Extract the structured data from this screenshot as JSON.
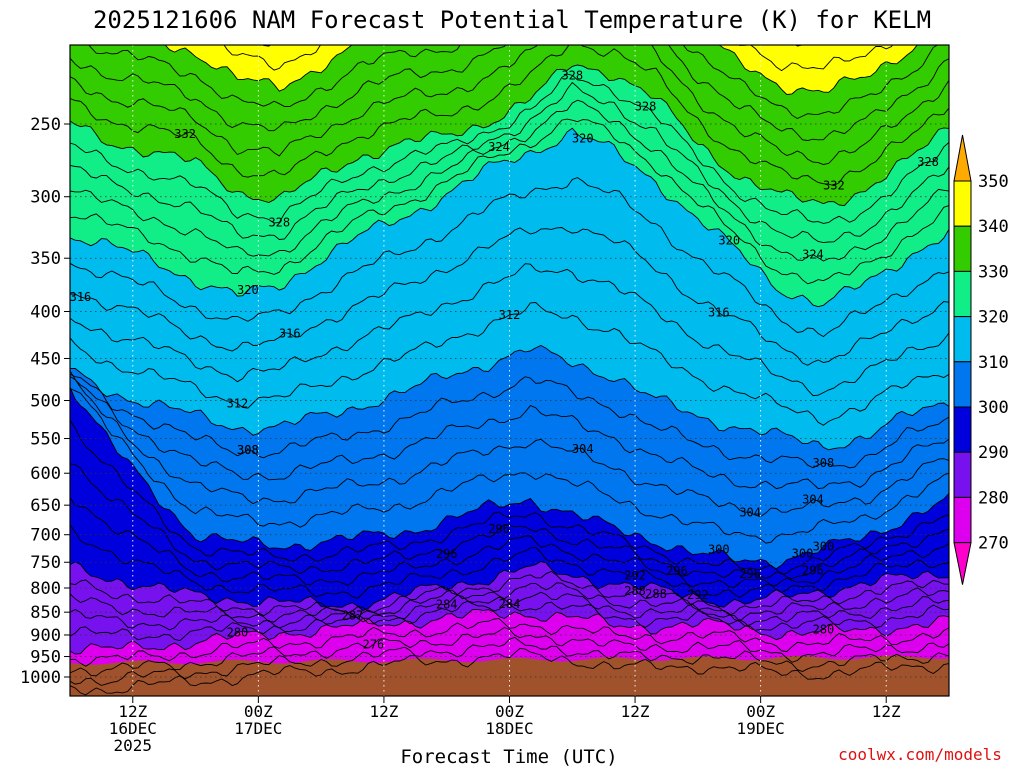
{
  "chart_data": {
    "type": "contour",
    "title": "2025121606 NAM Forecast Potential Temperature (K) for KELM",
    "xlabel": "Forecast Time (UTC)",
    "credit": "coolwx.com/models",
    "yticks": [
      "250",
      "300",
      "350",
      "400",
      "450",
      "500",
      "550",
      "600",
      "650",
      "700",
      "750",
      "800",
      "850",
      "900",
      "950",
      "1000"
    ],
    "ytick_values": [
      250,
      300,
      350,
      400,
      450,
      500,
      550,
      600,
      650,
      700,
      750,
      800,
      850,
      900,
      950,
      1000
    ],
    "xticks": [
      {
        "l1": "12Z",
        "l2": "16DEC",
        "l3": "2025",
        "hour": 6
      },
      {
        "l1": "00Z",
        "l2": "17DEC",
        "l3": "",
        "hour": 18
      },
      {
        "l1": "12Z",
        "l2": "",
        "l3": "",
        "hour": 30
      },
      {
        "l1": "00Z",
        "l2": "18DEC",
        "l3": "",
        "hour": 42
      },
      {
        "l1": "12Z",
        "l2": "",
        "l3": "",
        "hour": 54
      },
      {
        "l1": "00Z",
        "l2": "19DEC",
        "l3": "",
        "hour": 66
      },
      {
        "l1": "12Z",
        "l2": "",
        "l3": "",
        "hour": 78
      }
    ],
    "x_range_hours": [
      0,
      84
    ],
    "colorbar": {
      "labels": [
        "350",
        "340",
        "330",
        "320",
        "310",
        "300",
        "290",
        "280",
        "270"
      ],
      "bands": [
        {
          "lo": 340,
          "hi": 350,
          "color": "#ffff00"
        },
        {
          "lo": 330,
          "hi": 340,
          "color": "#33cc00"
        },
        {
          "lo": 320,
          "hi": 330,
          "color": "#11ee88"
        },
        {
          "lo": 310,
          "hi": 320,
          "color": "#00bbee"
        },
        {
          "lo": 300,
          "hi": 310,
          "color": "#0077ee"
        },
        {
          "lo": 290,
          "hi": 300,
          "color": "#0000dd"
        },
        {
          "lo": 280,
          "hi": 290,
          "color": "#7711ee"
        },
        {
          "lo": 270,
          "hi": 280,
          "color": "#dd00ee"
        }
      ],
      "top_color": "#ffaa00",
      "bottom_color": "#ff00cc"
    },
    "ground_color": "#a0522d",
    "contour_labels": [
      "332",
      "328",
      "324",
      "328",
      "328",
      "324",
      "332",
      "328",
      "320",
      "316",
      "320",
      "316",
      "320",
      "316",
      "312",
      "308",
      "308",
      "304",
      "312",
      "308",
      "304",
      "304",
      "300",
      "296",
      "300",
      "300",
      "296",
      "296",
      "292",
      "296",
      "292",
      "288",
      "280",
      "284",
      "287",
      "276",
      "280",
      "284",
      "288",
      "296"
    ],
    "profile_keys": {
      "hours": [
        0,
        4,
        8,
        12,
        16,
        20,
        24,
        28,
        32,
        36,
        40,
        44,
        48,
        52,
        56,
        60,
        64,
        68,
        72,
        76,
        80,
        84
      ],
      "p330": [
        250,
        262,
        268,
        276,
        296,
        302,
        285,
        270,
        262,
        258,
        248,
        235,
        215,
        220,
        235,
        262,
        285,
        300,
        305,
        295,
        275,
        250
      ],
      "p320": [
        330,
        340,
        352,
        370,
        385,
        375,
        350,
        330,
        315,
        298,
        280,
        268,
        255,
        268,
        288,
        318,
        345,
        378,
        395,
        372,
        348,
        330
      ],
      "p310": [
        465,
        490,
        505,
        520,
        535,
        535,
        520,
        505,
        490,
        470,
        455,
        440,
        455,
        470,
        500,
        520,
        535,
        548,
        560,
        548,
        520,
        500
      ],
      "p300": [
        480,
        560,
        630,
        700,
        715,
        720,
        712,
        705,
        695,
        675,
        655,
        640,
        665,
        690,
        710,
        735,
        748,
        745,
        725,
        705,
        670,
        640
      ],
      "p290": [
        760,
        780,
        800,
        815,
        822,
        830,
        835,
        830,
        815,
        795,
        780,
        760,
        775,
        790,
        805,
        818,
        830,
        820,
        805,
        790,
        780,
        770
      ],
      "p280": [
        930,
        935,
        925,
        915,
        905,
        895,
        888,
        880,
        870,
        862,
        855,
        852,
        860,
        880,
        880,
        876,
        884,
        895,
        895,
        888,
        880,
        870
      ]
    }
  }
}
